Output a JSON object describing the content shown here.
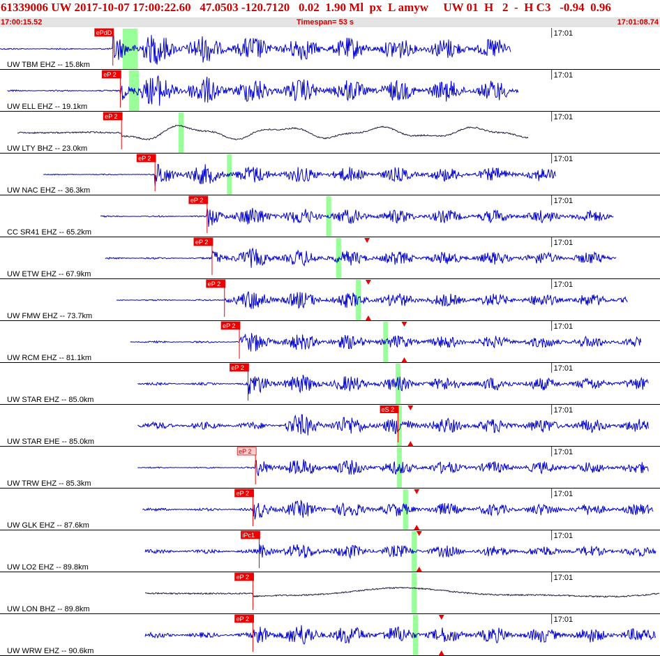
{
  "header": {
    "title": "61339006 UW 2017-10-07 17:00:22.60   47.0503 -120.7120   0.02  1.90 Ml  px  L amyw     UW 01  H   2  -  H C3   -0.94  0.96",
    "start_time": "17:00:15.52",
    "timespan": "Timespan=  53 s",
    "end_time": "17:01:08.74"
  },
  "colors": {
    "trace_blue": "#0000cc",
    "trace_black": "#1a1a3a",
    "pick_red": "#ee0000",
    "pick_label_pale": "#ffcccc",
    "marker_green": "#99ff99",
    "time_bar_bg": "#e4e4e4",
    "header_text": "#cc0000"
  },
  "chart_data": {
    "type": "line",
    "x_unit": "seconds since 17:00:15.52",
    "xlim": [
      0,
      53.22
    ],
    "minute_tick_label": "17:01",
    "minute_tick_x": 44.48,
    "channels": [
      {
        "label": "UW TBM EHZ -- 15.8km",
        "pick": "ePdD",
        "pick_x": 9.1,
        "pick_style": "solid",
        "s_pick": null,
        "green": [
          9.9,
          11.1
        ],
        "start_x": 0,
        "end_x": 41.2,
        "noise_amp": 0.04,
        "amp": 1.0,
        "clip": true,
        "color": "blue",
        "period": 0.45,
        "flag": null
      },
      {
        "label": "UW ELL EHZ -- 19.1km",
        "pick": "eP 2",
        "pick_x": 9.7,
        "pick_style": "solid",
        "s_pick": null,
        "green": [
          10.4,
          11.2
        ],
        "start_x": 0.6,
        "end_x": 41.8,
        "noise_amp": 0.04,
        "amp": 1.0,
        "clip": true,
        "color": "blue",
        "period": 0.3,
        "flag": null
      },
      {
        "label": "UW LTY BHZ -- 23.0km",
        "pick": "eP 2",
        "pick_x": 9.8,
        "pick_style": "solid",
        "s_pick": null,
        "green": [
          14.4,
          14.8
        ],
        "start_x": 1.4,
        "end_x": 42.6,
        "noise_amp": 0.02,
        "amp": 0.55,
        "clip": false,
        "color": "black",
        "period": 1.3,
        "flag": null
      },
      {
        "label": "UW NAC EHZ -- 36.3km",
        "pick": "eP 2",
        "pick_x": 12.5,
        "pick_style": "solid",
        "s_pick": null,
        "green": [
          18.3,
          18.7
        ],
        "start_x": 3.5,
        "end_x": 44.8,
        "noise_amp": 0.03,
        "amp": 0.65,
        "clip": false,
        "color": "blue",
        "period": 0.35,
        "flag": null
      },
      {
        "label": "CC SR41 EHZ -- 65.2km",
        "pick": "eP 2",
        "pick_x": 16.7,
        "pick_style": "solid",
        "s_pick": null,
        "green": [
          26.3,
          26.7
        ],
        "start_x": 8.1,
        "end_x": 49.5,
        "noise_amp": 0.04,
        "amp": 0.6,
        "clip": false,
        "color": "blue",
        "period": 0.28,
        "flag": null
      },
      {
        "label": "UW ETW EHZ -- 67.9km",
        "pick": "eP 2",
        "pick_x": 17.1,
        "pick_style": "solid",
        "s_pick": null,
        "green": [
          27.1,
          27.5
        ],
        "start_x": 8.5,
        "end_x": 49.7,
        "noise_amp": 0.05,
        "amp": 0.6,
        "clip": false,
        "color": "blue",
        "period": 0.4,
        "flag": [
          29.6,
          "top"
        ]
      },
      {
        "label": "UW FMW EHZ -- 73.7km",
        "pick": "eP 2",
        "pick_x": 18.1,
        "pick_style": "solid",
        "s_pick": null,
        "green": [
          28.7,
          29.1
        ],
        "start_x": 9.4,
        "end_x": 50.6,
        "noise_amp": 0.04,
        "amp": 0.6,
        "clip": false,
        "color": "blue",
        "period": 0.4,
        "flag": [
          29.7,
          "both"
        ]
      },
      {
        "label": "UW RCM EHZ -- 81.1km",
        "pick": "eP 2",
        "pick_x": 19.3,
        "pick_style": "solid",
        "s_pick": null,
        "green": [
          30.9,
          31.3
        ],
        "start_x": 10.5,
        "end_x": 51.7,
        "noise_amp": 0.05,
        "amp": 0.55,
        "clip": false,
        "color": "blue",
        "period": 0.32,
        "flag": [
          32.6,
          "both"
        ]
      },
      {
        "label": "UW STAR EHZ -- 85.0km",
        "pick": "eP 2",
        "pick_x": 20.0,
        "pick_style": "solid",
        "s_pick": null,
        "green": [
          31.9,
          32.3
        ],
        "start_x": 11.1,
        "end_x": 52.3,
        "noise_amp": 0.07,
        "amp": 0.6,
        "clip": false,
        "color": "blue",
        "period": 0.32,
        "flag": null
      },
      {
        "label": "UW STAR EHE -- 85.0km",
        "pick": null,
        "pick_x": null,
        "pick_style": "solid",
        "s_pick": {
          "label": "eS 2",
          "x": 32.1
        },
        "green": [
          32.0,
          32.4
        ],
        "start_x": 11.1,
        "end_x": 52.3,
        "noise_amp": 0.2,
        "amp": 0.65,
        "clip": false,
        "color": "blue",
        "period": 0.3,
        "flag": [
          33.1,
          "both"
        ]
      },
      {
        "label": "UW TRW EHZ -- 85.3km",
        "pick": "eP 2",
        "pick_x": 20.6,
        "pick_style": "pale",
        "s_pick": null,
        "green": [
          32.0,
          32.4
        ],
        "start_x": 11.1,
        "end_x": 52.3,
        "noise_amp": 0.04,
        "amp": 0.55,
        "clip": false,
        "color": "blue",
        "period": 0.3,
        "flag": null
      },
      {
        "label": "UW GLK EHZ -- 87.6km",
        "pick": "eP 2",
        "pick_x": 20.4,
        "pick_style": "solid",
        "s_pick": null,
        "green": [
          32.5,
          32.9
        ],
        "start_x": 11.5,
        "end_x": 52.7,
        "noise_amp": 0.08,
        "amp": 0.55,
        "clip": false,
        "color": "blue",
        "period": 0.32,
        "flag": [
          33.6,
          "both"
        ]
      },
      {
        "label": "UW LO2 EHZ -- 89.8km",
        "pick": "iPc1",
        "pick_x": 20.9,
        "pick_style": "solid",
        "s_pick": null,
        "green": [
          33.2,
          33.6
        ],
        "start_x": 11.7,
        "end_x": 52.9,
        "noise_amp": 0.12,
        "amp": 0.5,
        "clip": false,
        "color": "blue",
        "period": 0.32,
        "flag": [
          33.8,
          "both"
        ]
      },
      {
        "label": "UW LON BHZ -- 89.8km",
        "pick": "eP 2",
        "pick_x": 20.4,
        "pick_style": "solid",
        "s_pick": null,
        "green": [
          33.2,
          33.6
        ],
        "start_x": 11.7,
        "end_x": 53.2,
        "noise_amp": 0.03,
        "amp": 0.45,
        "clip": false,
        "color": "black",
        "period": 4.6,
        "flag": null
      },
      {
        "label": "UW WRW EHZ -- 90.6km",
        "pick": "eP 2",
        "pick_x": 20.4,
        "pick_style": "solid",
        "s_pick": null,
        "green": [
          33.3,
          33.7
        ],
        "start_x": 11.7,
        "end_x": 52.9,
        "noise_amp": 0.15,
        "amp": 0.7,
        "clip": false,
        "color": "blue",
        "period": 0.32,
        "flag": [
          35.6,
          "both"
        ]
      }
    ]
  }
}
